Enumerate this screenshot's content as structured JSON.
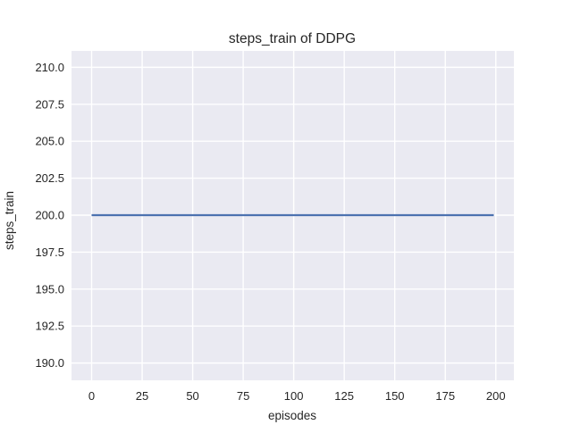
{
  "chart_data": {
    "type": "line",
    "title": "steps_train of DDPG",
    "xlabel": "episodes",
    "ylabel": "steps_train",
    "x_ticks": [
      0,
      25,
      50,
      75,
      100,
      125,
      150,
      175,
      200
    ],
    "x_tick_labels": [
      "0",
      "25",
      "50",
      "75",
      "100",
      "125",
      "150",
      "175",
      "200"
    ],
    "y_ticks": [
      190,
      192.5,
      195,
      197.5,
      200,
      202.5,
      205,
      207.5,
      210
    ],
    "y_tick_labels": [
      "190.0",
      "192.5",
      "195.0",
      "197.5",
      "200.0",
      "202.5",
      "205.0",
      "207.5",
      "210.0"
    ],
    "xlim": [
      -9.95,
      208.95
    ],
    "ylim": [
      188.83,
      211.11
    ],
    "grid": true,
    "legend": false,
    "series": [
      {
        "name": "steps_train",
        "x": [
          0,
          199
        ],
        "values": [
          200,
          200
        ],
        "color": "#4c72b0"
      }
    ],
    "colors": {
      "figure_bg": "#ffffff",
      "plot_bg": "#eaeaf2",
      "grid": "#ffffff",
      "text": "#262626"
    }
  }
}
